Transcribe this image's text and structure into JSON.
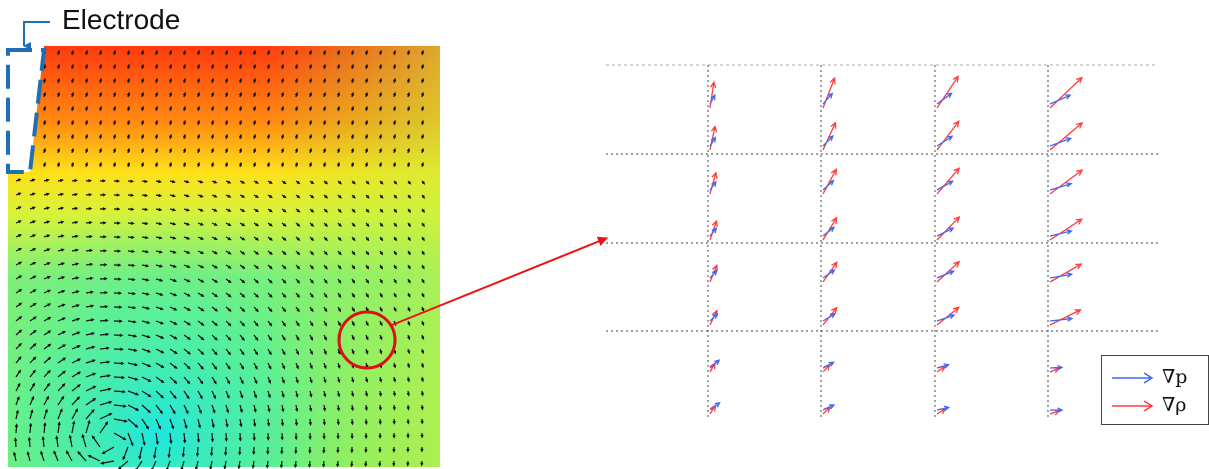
{
  "electrode_label": "Electrode",
  "legend": {
    "items": [
      {
        "label": "∇p",
        "color": "#4466ee"
      },
      {
        "label": "∇ρ",
        "color": "#ff3b3b"
      }
    ]
  },
  "colors": {
    "electrode_box": "#1f6fb5",
    "highlight_circle": "#dd1111",
    "pointer_arrow": "#ee1111",
    "grad_p_arrow": "#4466ee",
    "grad_rho_arrow": "#ff3b3b",
    "field_arrow": "#111111",
    "grid_line": "#666666"
  }
}
